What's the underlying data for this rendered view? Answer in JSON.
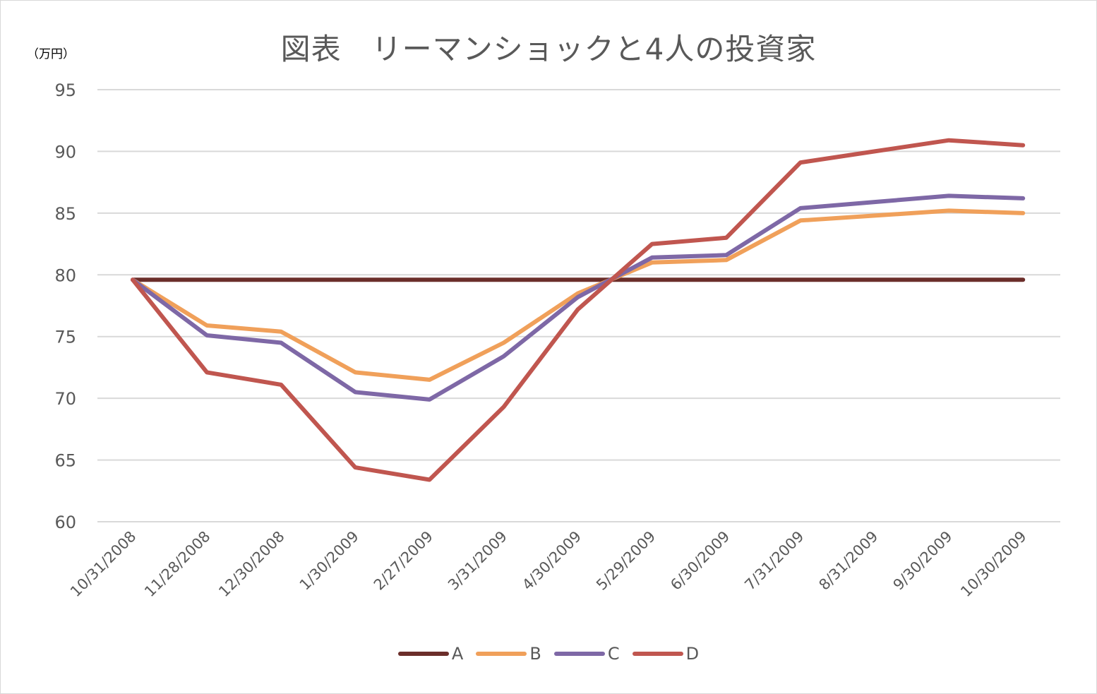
{
  "chart_data": {
    "type": "line",
    "title": "図表　リーマンショックと4人の投資家",
    "unit_label": "（万円）",
    "ylim": [
      60,
      95
    ],
    "yticks": [
      60,
      65,
      70,
      75,
      80,
      85,
      90,
      95
    ],
    "grid": "horizontal",
    "legend_position": "bottom",
    "categories": [
      "10/31/2008",
      "11/28/2008",
      "12/30/2008",
      "1/30/2009",
      "2/27/2009",
      "3/31/2009",
      "4/30/2009",
      "5/29/2009",
      "6/30/2009",
      "7/31/2009",
      "8/31/2009",
      "9/30/2009",
      "10/30/2009"
    ],
    "series": [
      {
        "name": "A",
        "color": "#6b2e2a",
        "values": [
          79.6,
          79.6,
          79.6,
          79.6,
          79.6,
          79.6,
          79.6,
          79.6,
          79.6,
          79.6,
          79.6,
          79.6,
          79.6
        ]
      },
      {
        "name": "B",
        "color": "#f0a05a",
        "values": [
          79.6,
          75.9,
          75.4,
          72.1,
          71.5,
          74.5,
          78.5,
          81.0,
          81.2,
          84.4,
          84.8,
          85.2,
          85.0
        ]
      },
      {
        "name": "C",
        "color": "#7e68a6",
        "values": [
          79.6,
          75.1,
          74.5,
          70.5,
          69.9,
          73.4,
          78.2,
          81.4,
          81.6,
          85.4,
          85.9,
          86.4,
          86.2
        ]
      },
      {
        "name": "D",
        "color": "#c0564f",
        "values": [
          79.6,
          72.1,
          71.1,
          64.4,
          63.4,
          69.3,
          77.2,
          82.5,
          83.0,
          89.1,
          90.0,
          90.9,
          90.5
        ]
      }
    ]
  }
}
